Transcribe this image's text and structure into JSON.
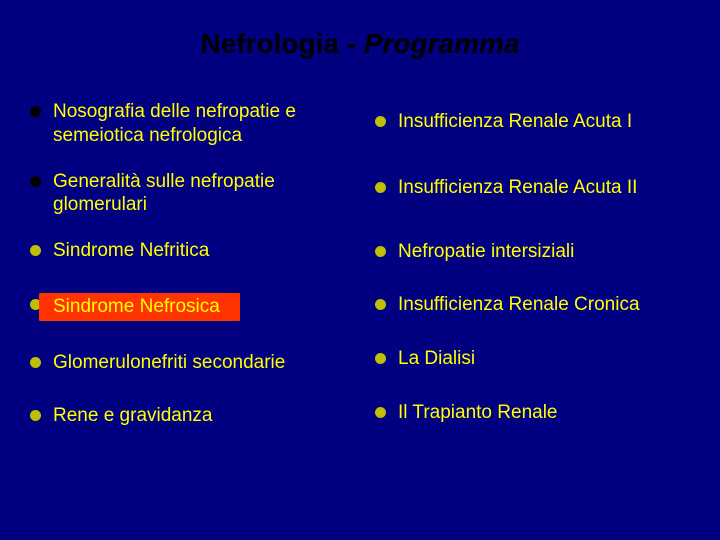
{
  "title": {
    "part1": "Nefrologia - ",
    "part2": "Programma"
  },
  "left_items": [
    {
      "text": "Nosografia delle nefropatie e semeiotica nefrologica",
      "bullet_black": true,
      "highlighted": false
    },
    {
      "text": "Generalità sulle nefropatie glomerulari",
      "bullet_black": true,
      "highlighted": false
    },
    {
      "text": "Sindrome Nefritica",
      "bullet_black": false,
      "highlighted": false
    },
    {
      "text": "Sindrome Nefrosica",
      "bullet_black": false,
      "highlighted": true
    },
    {
      "text": "Glomerulonefriti secondarie",
      "bullet_black": false,
      "highlighted": false
    },
    {
      "text": "Rene e gravidanza",
      "bullet_black": false,
      "highlighted": false
    }
  ],
  "right_items": [
    {
      "text": " Insufficienza Renale Acuta I",
      "bullet_black": false,
      "highlighted": false,
      "extra_pad": true
    },
    {
      "text": "Insufficienza Renale Acuta II",
      "bullet_black": false,
      "highlighted": false
    },
    {
      "text": "Nefropatie intersiziali",
      "bullet_black": false,
      "highlighted": false
    },
    {
      "text": "Insufficienza Renale Cronica",
      "bullet_black": false,
      "highlighted": false
    },
    {
      "text": "La Dialisi",
      "bullet_black": false,
      "highlighted": false
    },
    {
      "text": "Il Trapianto Renale",
      "bullet_black": false,
      "highlighted": false
    }
  ],
  "colors": {
    "background": "#000080",
    "text": "#ffff00",
    "title": "#000000",
    "bullet": "#c0c000",
    "bullet_black": "#000000",
    "highlight": "#ff3300"
  },
  "typography": {
    "title_fontsize": 28,
    "item_fontsize": 19,
    "font_family": "Arial, sans-serif"
  }
}
